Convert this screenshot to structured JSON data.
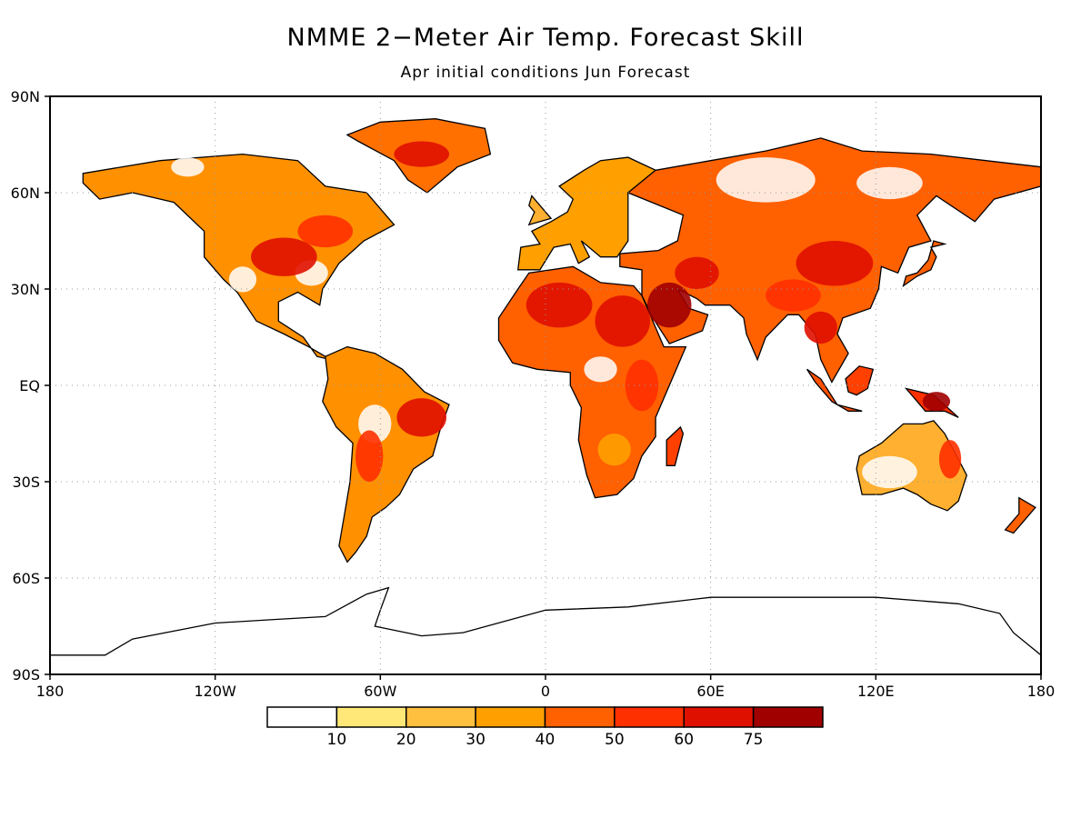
{
  "title": "NMME 2−Meter Air Temp. Forecast Skill",
  "subtitle": "Apr initial conditions  Jun Forecast",
  "map": {
    "lon_range": [
      -180,
      180
    ],
    "lat_range": [
      -90,
      90
    ],
    "lat_ticks": [
      {
        "value": 90,
        "label": "90N"
      },
      {
        "value": 60,
        "label": "60N"
      },
      {
        "value": 30,
        "label": "30N"
      },
      {
        "value": 0,
        "label": "EQ"
      },
      {
        "value": -30,
        "label": "30S"
      },
      {
        "value": -60,
        "label": "60S"
      },
      {
        "value": -90,
        "label": "90S"
      }
    ],
    "lon_ticks": [
      {
        "value": -180,
        "label": "180"
      },
      {
        "value": -120,
        "label": "120W"
      },
      {
        "value": -60,
        "label": "60W"
      },
      {
        "value": 0,
        "label": "0"
      },
      {
        "value": 60,
        "label": "60E"
      },
      {
        "value": 120,
        "label": "120E"
      },
      {
        "value": 180,
        "label": "180"
      }
    ],
    "grid": "dotted"
  },
  "colorbar": {
    "colors": [
      "#ffffff",
      "#ffe878",
      "#ffc040",
      "#ffa000",
      "#ff6000",
      "#ff3000",
      "#e01000",
      "#a00000"
    ],
    "labels": [
      "10",
      "20",
      "30",
      "40",
      "50",
      "60",
      "75"
    ]
  },
  "skill_regions": [
    {
      "name": "north-america",
      "shade": "#ff9000",
      "lonlat": [
        [
          -168,
          66
        ],
        [
          -140,
          70
        ],
        [
          -110,
          72
        ],
        [
          -90,
          70
        ],
        [
          -80,
          62
        ],
        [
          -65,
          60
        ],
        [
          -55,
          50
        ],
        [
          -66,
          45
        ],
        [
          -75,
          38
        ],
        [
          -81,
          30
        ],
        [
          -82,
          25
        ],
        [
          -90,
          29
        ],
        [
          -97,
          26
        ],
        [
          -97,
          20
        ],
        [
          -88,
          15
        ],
        [
          -83,
          9
        ],
        [
          -78,
          8
        ],
        [
          -86,
          12
        ],
        [
          -95,
          16
        ],
        [
          -105,
          20
        ],
        [
          -112,
          29
        ],
        [
          -117,
          33
        ],
        [
          -124,
          40
        ],
        [
          -124,
          48
        ],
        [
          -135,
          57
        ],
        [
          -150,
          60
        ],
        [
          -162,
          58
        ],
        [
          -168,
          63
        ]
      ]
    },
    {
      "name": "greenland",
      "shade": "#ff7000",
      "lonlat": [
        [
          -72,
          78
        ],
        [
          -60,
          82
        ],
        [
          -40,
          83
        ],
        [
          -22,
          80
        ],
        [
          -20,
          72
        ],
        [
          -32,
          68
        ],
        [
          -43,
          60
        ],
        [
          -50,
          64
        ],
        [
          -55,
          70
        ],
        [
          -68,
          76
        ]
      ]
    },
    {
      "name": "south-america",
      "shade": "#ff9000",
      "lonlat": [
        [
          -80,
          9
        ],
        [
          -72,
          12
        ],
        [
          -62,
          10
        ],
        [
          -52,
          5
        ],
        [
          -44,
          -2
        ],
        [
          -35,
          -6
        ],
        [
          -38,
          -13
        ],
        [
          -41,
          -22
        ],
        [
          -48,
          -26
        ],
        [
          -53,
          -34
        ],
        [
          -58,
          -38
        ],
        [
          -63,
          -41
        ],
        [
          -65,
          -47
        ],
        [
          -69,
          -52
        ],
        [
          -72,
          -55
        ],
        [
          -75,
          -50
        ],
        [
          -73,
          -40
        ],
        [
          -71,
          -30
        ],
        [
          -70,
          -18
        ],
        [
          -76,
          -13
        ],
        [
          -81,
          -5
        ],
        [
          -79,
          2
        ]
      ]
    },
    {
      "name": "africa",
      "shade": "#ff6000",
      "lonlat": [
        [
          -17,
          21
        ],
        [
          -10,
          30
        ],
        [
          -6,
          35
        ],
        [
          10,
          37
        ],
        [
          20,
          32
        ],
        [
          32,
          31
        ],
        [
          35,
          28
        ],
        [
          43,
          12
        ],
        [
          51,
          12
        ],
        [
          44,
          -2
        ],
        [
          40,
          -10
        ],
        [
          40,
          -16
        ],
        [
          35,
          -22
        ],
        [
          32,
          -29
        ],
        [
          26,
          -34
        ],
        [
          18,
          -35
        ],
        [
          15,
          -28
        ],
        [
          12,
          -17
        ],
        [
          13,
          -7
        ],
        [
          9,
          0
        ],
        [
          9,
          4
        ],
        [
          -3,
          5
        ],
        [
          -12,
          7
        ],
        [
          -17,
          14
        ]
      ]
    },
    {
      "name": "madagascar",
      "shade": "#ff4000",
      "lonlat": [
        [
          49,
          -13
        ],
        [
          50,
          -15
        ],
        [
          47,
          -25
        ],
        [
          44,
          -25
        ],
        [
          44,
          -17
        ]
      ]
    },
    {
      "name": "europe",
      "shade": "#ffa000",
      "lonlat": [
        [
          -10,
          36
        ],
        [
          -9,
          43
        ],
        [
          -2,
          44
        ],
        [
          -5,
          48
        ],
        [
          2,
          51
        ],
        [
          8,
          54
        ],
        [
          10,
          58
        ],
        [
          5,
          62
        ],
        [
          14,
          67
        ],
        [
          20,
          70
        ],
        [
          30,
          71
        ],
        [
          40,
          67
        ],
        [
          30,
          60
        ],
        [
          30,
          45
        ],
        [
          26,
          40
        ],
        [
          20,
          40
        ],
        [
          13,
          45
        ],
        [
          16,
          40
        ],
        [
          12,
          38
        ],
        [
          9,
          44
        ],
        [
          3,
          43
        ],
        [
          -2,
          36
        ]
      ]
    },
    {
      "name": "asia",
      "shade": "#ff6000",
      "lonlat": [
        [
          40,
          67
        ],
        [
          60,
          70
        ],
        [
          80,
          73
        ],
        [
          100,
          77
        ],
        [
          115,
          73
        ],
        [
          140,
          72
        ],
        [
          160,
          70
        ],
        [
          180,
          68
        ],
        [
          180,
          62
        ],
        [
          163,
          58
        ],
        [
          156,
          51
        ],
        [
          142,
          59
        ],
        [
          135,
          53
        ],
        [
          140,
          45
        ],
        [
          132,
          43
        ],
        [
          128,
          35
        ],
        [
          122,
          37
        ],
        [
          121,
          30
        ],
        [
          118,
          24
        ],
        [
          108,
          21
        ],
        [
          106,
          16
        ],
        [
          110,
          10
        ],
        [
          104,
          1
        ],
        [
          100,
          8
        ],
        [
          98,
          16
        ],
        [
          92,
          22
        ],
        [
          88,
          22
        ],
        [
          80,
          15
        ],
        [
          77,
          8
        ],
        [
          73,
          16
        ],
        [
          72,
          21
        ],
        [
          67,
          25
        ],
        [
          58,
          25
        ],
        [
          55,
          27
        ],
        [
          48,
          30
        ],
        [
          52,
          24
        ],
        [
          59,
          22
        ],
        [
          57,
          17
        ],
        [
          45,
          13
        ],
        [
          39,
          21
        ],
        [
          35,
          28
        ],
        [
          35,
          36
        ],
        [
          27,
          37
        ],
        [
          27,
          41
        ],
        [
          41,
          42
        ],
        [
          48,
          45
        ],
        [
          50,
          53
        ],
        [
          30,
          60
        ]
      ]
    },
    {
      "name": "australia",
      "shade": "#ffb030",
      "lonlat": [
        [
          114,
          -22
        ],
        [
          122,
          -18
        ],
        [
          130,
          -12
        ],
        [
          137,
          -12
        ],
        [
          141,
          -11
        ],
        [
          145,
          -15
        ],
        [
          150,
          -23
        ],
        [
          153,
          -28
        ],
        [
          150,
          -36
        ],
        [
          146,
          -39
        ],
        [
          140,
          -37
        ],
        [
          135,
          -34
        ],
        [
          130,
          -32
        ],
        [
          122,
          -34
        ],
        [
          115,
          -34
        ],
        [
          113,
          -26
        ]
      ]
    },
    {
      "name": "indonesia",
      "shade": "#ff5000",
      "lonlat": [
        [
          95,
          5
        ],
        [
          100,
          2
        ],
        [
          106,
          -6
        ],
        [
          115,
          -8
        ],
        [
          110,
          -8
        ],
        [
          104,
          -5
        ],
        [
          98,
          1
        ]
      ]
    },
    {
      "name": "borneo",
      "shade": "#ff4000",
      "lonlat": [
        [
          109,
          2
        ],
        [
          114,
          6
        ],
        [
          119,
          5
        ],
        [
          117,
          -1
        ],
        [
          113,
          -3
        ],
        [
          110,
          -2
        ]
      ]
    },
    {
      "name": "new-guinea",
      "shade": "#ff3000",
      "lonlat": [
        [
          131,
          -1
        ],
        [
          141,
          -3
        ],
        [
          150,
          -10
        ],
        [
          145,
          -8
        ],
        [
          138,
          -8
        ],
        [
          134,
          -4
        ]
      ]
    },
    {
      "name": "japan",
      "shade": "#ff6000",
      "lonlat": [
        [
          130,
          31
        ],
        [
          135,
          34
        ],
        [
          140,
          36
        ],
        [
          142,
          40
        ],
        [
          140,
          43
        ],
        [
          145,
          44
        ],
        [
          141,
          45
        ],
        [
          139,
          39
        ],
        [
          135,
          35
        ],
        [
          131,
          34
        ]
      ]
    },
    {
      "name": "british-isles",
      "shade": "#ffb030",
      "lonlat": [
        [
          -6,
          50
        ],
        [
          2,
          52
        ],
        [
          -2,
          56
        ],
        [
          -5,
          59
        ],
        [
          -6,
          56
        ],
        [
          -4,
          54
        ]
      ]
    },
    {
      "name": "new-zealand",
      "shade": "#ff6000",
      "lonlat": [
        [
          172,
          -35
        ],
        [
          178,
          -38
        ],
        [
          174,
          -42
        ],
        [
          170,
          -46
        ],
        [
          167,
          -45
        ],
        [
          172,
          -40
        ]
      ]
    }
  ],
  "coast_outlines": [
    {
      "name": "antarctica",
      "lonlat": [
        [
          -180,
          -84
        ],
        [
          -160,
          -84
        ],
        [
          -150,
          -79
        ],
        [
          -120,
          -74
        ],
        [
          -100,
          -73
        ],
        [
          -80,
          -72
        ],
        [
          -65,
          -65
        ],
        [
          -57,
          -63
        ],
        [
          -60,
          -70
        ],
        [
          -62,
          -75
        ],
        [
          -45,
          -78
        ],
        [
          -30,
          -77
        ],
        [
          0,
          -70
        ],
        [
          30,
          -69
        ],
        [
          60,
          -66
        ],
        [
          90,
          -66
        ],
        [
          120,
          -66
        ],
        [
          150,
          -68
        ],
        [
          165,
          -71
        ],
        [
          170,
          -77
        ],
        [
          180,
          -84
        ]
      ]
    }
  ],
  "hot_spots": [
    {
      "lon": -95,
      "lat": 40,
      "rx": 12,
      "ry": 6,
      "shade": "#e01000"
    },
    {
      "lon": -80,
      "lat": 48,
      "rx": 10,
      "ry": 5,
      "shade": "#ff3000"
    },
    {
      "lon": -45,
      "lat": 72,
      "rx": 10,
      "ry": 4,
      "shade": "#e01000"
    },
    {
      "lon": -45,
      "lat": -10,
      "rx": 9,
      "ry": 6,
      "shade": "#e01000"
    },
    {
      "lon": -64,
      "lat": -22,
      "rx": 5,
      "ry": 8,
      "shade": "#ff3000"
    },
    {
      "lon": 5,
      "lat": 25,
      "rx": 12,
      "ry": 7,
      "shade": "#e01000"
    },
    {
      "lon": 28,
      "lat": 20,
      "rx": 10,
      "ry": 8,
      "shade": "#e01000"
    },
    {
      "lon": 35,
      "lat": 0,
      "rx": 6,
      "ry": 8,
      "shade": "#ff3000"
    },
    {
      "lon": 25,
      "lat": -20,
      "rx": 6,
      "ry": 5,
      "shade": "#ffa000"
    },
    {
      "lon": 45,
      "lat": 25,
      "rx": 8,
      "ry": 7,
      "shade": "#a00000"
    },
    {
      "lon": 55,
      "lat": 35,
      "rx": 8,
      "ry": 5,
      "shade": "#e01000"
    },
    {
      "lon": 105,
      "lat": 38,
      "rx": 14,
      "ry": 7,
      "shade": "#e01000"
    },
    {
      "lon": 90,
      "lat": 28,
      "rx": 10,
      "ry": 5,
      "shade": "#ff3000"
    },
    {
      "lon": 100,
      "lat": 18,
      "rx": 6,
      "ry": 5,
      "shade": "#e01000"
    },
    {
      "lon": 142,
      "lat": -5,
      "rx": 5,
      "ry": 3,
      "shade": "#a00000"
    },
    {
      "lon": 147,
      "lat": -23,
      "rx": 4,
      "ry": 6,
      "shade": "#ff3000"
    }
  ],
  "low_spots": [
    {
      "lon": 80,
      "lat": 64,
      "rx": 18,
      "ry": 7
    },
    {
      "lon": 125,
      "lat": 63,
      "rx": 12,
      "ry": 5
    },
    {
      "lon": -85,
      "lat": 35,
      "rx": 6,
      "ry": 4
    },
    {
      "lon": -110,
      "lat": 33,
      "rx": 5,
      "ry": 4
    },
    {
      "lon": -62,
      "lat": -12,
      "rx": 6,
      "ry": 6
    },
    {
      "lon": 20,
      "lat": 5,
      "rx": 6,
      "ry": 4
    },
    {
      "lon": 125,
      "lat": -27,
      "rx": 10,
      "ry": 5
    },
    {
      "lon": -130,
      "lat": 68,
      "rx": 6,
      "ry": 3
    }
  ]
}
